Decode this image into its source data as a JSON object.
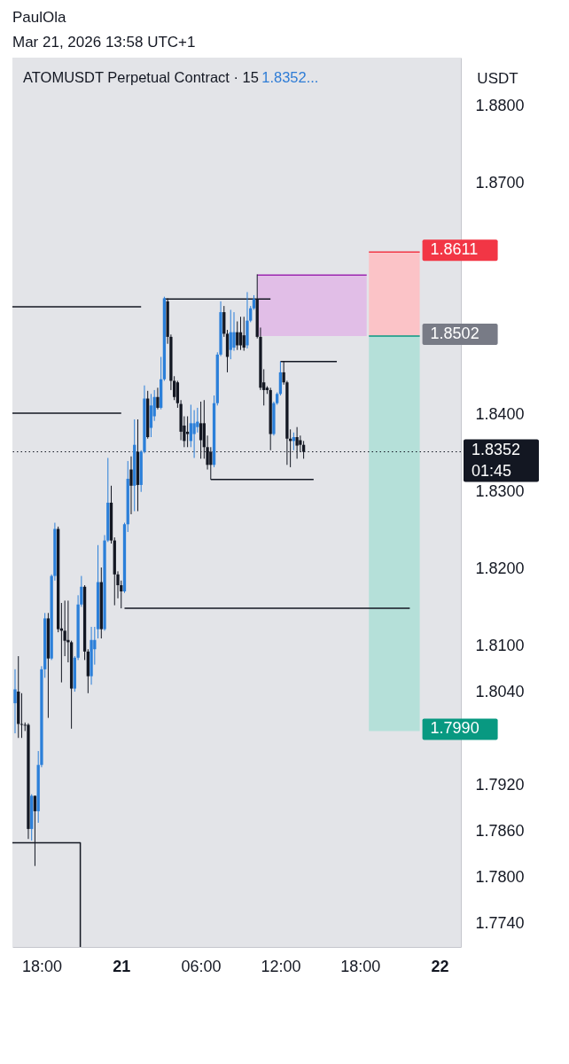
{
  "chart_data": {
    "type": "candlestick",
    "title": "ATOMUSDT Perpetual Contract · 15",
    "subtitle": "1.8352...",
    "ylabel": "USDT",
    "annotations": [
      "PaulOla",
      "Mar 21, 2026 13:58 UTC+1",
      {
        "text": "1.8611",
        "x": "2026-03-21T22:30",
        "y": 1.8611
      },
      {
        "text": "1.8502",
        "x": "2026-03-21T22:30",
        "y": 1.8502
      },
      {
        "text": "1.7990",
        "x": "2026-03-21T22:30",
        "y": 1.799
      }
    ],
    "x": [
      "2026-03-20T16:00",
      "2026-03-20T16:15",
      "2026-03-20T16:30",
      "2026-03-20T16:45",
      "2026-03-20T17:00",
      "2026-03-20T17:15",
      "2026-03-20T17:30",
      "2026-03-20T17:45",
      "2026-03-20T18:00",
      "2026-03-20T18:15",
      "2026-03-20T18:30",
      "2026-03-20T18:45",
      "2026-03-20T19:00",
      "2026-03-20T19:15",
      "2026-03-20T19:30",
      "2026-03-20T19:45",
      "2026-03-20T20:00",
      "2026-03-20T20:15",
      "2026-03-20T20:30",
      "2026-03-20T20:45",
      "2026-03-20T21:00",
      "2026-03-20T21:15",
      "2026-03-20T21:30",
      "2026-03-20T21:45",
      "2026-03-20T22:00",
      "2026-03-20T22:15",
      "2026-03-20T22:30",
      "2026-03-20T22:45",
      "2026-03-20T23:00",
      "2026-03-20T23:15",
      "2026-03-20T23:30",
      "2026-03-20T23:45",
      "2026-03-21T00:00",
      "2026-03-21T00:15",
      "2026-03-21T00:30",
      "2026-03-21T00:45",
      "2026-03-21T01:00",
      "2026-03-21T01:15",
      "2026-03-21T01:30",
      "2026-03-21T01:45",
      "2026-03-21T02:00",
      "2026-03-21T02:15",
      "2026-03-21T02:30",
      "2026-03-21T02:45",
      "2026-03-21T03:00",
      "2026-03-21T03:15",
      "2026-03-21T03:30",
      "2026-03-21T03:45",
      "2026-03-21T04:00",
      "2026-03-21T04:15",
      "2026-03-21T04:30",
      "2026-03-21T04:45",
      "2026-03-21T05:00",
      "2026-03-21T05:15",
      "2026-03-21T05:30",
      "2026-03-21T05:45",
      "2026-03-21T06:00",
      "2026-03-21T06:15",
      "2026-03-21T06:30",
      "2026-03-21T06:45",
      "2026-03-21T07:00",
      "2026-03-21T07:15",
      "2026-03-21T07:30",
      "2026-03-21T07:45",
      "2026-03-21T08:00",
      "2026-03-21T08:15",
      "2026-03-21T08:30",
      "2026-03-21T08:45",
      "2026-03-21T09:00",
      "2026-03-21T09:15",
      "2026-03-21T09:30",
      "2026-03-21T09:45",
      "2026-03-21T10:00",
      "2026-03-21T10:15",
      "2026-03-21T10:30",
      "2026-03-21T10:45",
      "2026-03-21T11:00",
      "2026-03-21T11:15",
      "2026-03-21T11:30",
      "2026-03-21T11:45",
      "2026-03-21T12:00",
      "2026-03-21T12:15",
      "2026-03-21T12:30",
      "2026-03-21T12:45",
      "2026-03-21T13:00",
      "2026-03-21T13:15",
      "2026-03-21T13:30",
      "2026-03-21T13:45"
    ],
    "ohlc": [
      [
        1.8026,
        1.807,
        1.7987,
        1.8044
      ],
      [
        1.8041,
        1.8087,
        1.7981,
        1.7999
      ],
      [
        1.7999,
        1.8039,
        1.7981,
        1.7998
      ],
      [
        1.7998,
        1.8001,
        1.799,
        1.7997
      ],
      [
        1.7998,
        1.8,
        1.785,
        1.7863
      ],
      [
        1.7863,
        1.7908,
        1.7848,
        1.7906
      ],
      [
        1.7906,
        1.7906,
        1.7815,
        1.7886
      ],
      [
        1.7886,
        1.7964,
        1.7871,
        1.7946
      ],
      [
        1.7946,
        1.8074,
        1.7943,
        1.807
      ],
      [
        1.807,
        1.8143,
        1.8059,
        1.8136
      ],
      [
        1.8136,
        1.8143,
        1.8007,
        1.8084
      ],
      [
        1.8084,
        1.8193,
        1.8082,
        1.8191
      ],
      [
        1.8191,
        1.826,
        1.8185,
        1.8252
      ],
      [
        1.8252,
        1.8255,
        1.8118,
        1.8122
      ],
      [
        1.8123,
        1.8156,
        1.8053,
        1.812
      ],
      [
        1.812,
        1.8159,
        1.8087,
        1.8107
      ],
      [
        1.8108,
        1.8159,
        1.8079,
        1.8105
      ],
      [
        1.8105,
        1.8107,
        1.7993,
        1.8045
      ],
      [
        1.8045,
        1.8087,
        1.8041,
        1.8085
      ],
      [
        1.8085,
        1.8166,
        1.8082,
        1.8154
      ],
      [
        1.8154,
        1.8191,
        1.8151,
        1.8177
      ],
      [
        1.8177,
        1.8179,
        1.8082,
        1.8093
      ],
      [
        1.8093,
        1.8096,
        1.8039,
        1.8061
      ],
      [
        1.8061,
        1.8125,
        1.805,
        1.8108
      ],
      [
        1.8096,
        1.8125,
        1.8076,
        1.8108
      ],
      [
        1.8122,
        1.8231,
        1.811,
        1.8183
      ],
      [
        1.8183,
        1.8202,
        1.811,
        1.8122
      ],
      [
        1.8122,
        1.8244,
        1.812,
        1.8237
      ],
      [
        1.8237,
        1.8344,
        1.8235,
        1.8286
      ],
      [
        1.8286,
        1.8308,
        1.8233,
        1.8237
      ],
      [
        1.8237,
        1.8241,
        1.8153,
        1.8193
      ],
      [
        1.8193,
        1.8197,
        1.8162,
        1.8179
      ],
      [
        1.8179,
        1.8185,
        1.8149,
        1.8171
      ],
      [
        1.8171,
        1.826,
        1.8169,
        1.8258
      ],
      [
        1.8258,
        1.834,
        1.8248,
        1.8317
      ],
      [
        1.8329,
        1.8346,
        1.8271,
        1.8308
      ],
      [
        1.8308,
        1.8394,
        1.8275,
        1.8361
      ],
      [
        1.8352,
        1.8394,
        1.8275,
        1.8309
      ],
      [
        1.8309,
        1.8354,
        1.83,
        1.8352
      ],
      [
        1.8352,
        1.8438,
        1.835,
        1.8421
      ],
      [
        1.8421,
        1.8431,
        1.8369,
        1.8371
      ],
      [
        1.8383,
        1.8427,
        1.8371,
        1.8412
      ],
      [
        1.8398,
        1.8432,
        1.8392,
        1.8423
      ],
      [
        1.8423,
        1.8435,
        1.8407,
        1.8409
      ],
      [
        1.8409,
        1.8475,
        1.8407,
        1.8446
      ],
      [
        1.8446,
        1.8553,
        1.8444,
        1.8551
      ],
      [
        1.8547,
        1.8551,
        1.8492,
        1.8501
      ],
      [
        1.8501,
        1.8504,
        1.8432,
        1.8444
      ],
      [
        1.8444,
        1.845,
        1.8419,
        1.8423
      ],
      [
        1.8442,
        1.8444,
        1.8409,
        1.8415
      ],
      [
        1.8414,
        1.8419,
        1.8367,
        1.8378
      ],
      [
        1.8386,
        1.8398,
        1.8358,
        1.8366
      ],
      [
        1.8378,
        1.8398,
        1.8358,
        1.8375
      ],
      [
        1.8366,
        1.8413,
        1.8358,
        1.8389
      ],
      [
        1.8375,
        1.8406,
        1.8344,
        1.8389
      ],
      [
        1.8384,
        1.8409,
        1.8377,
        1.8391
      ],
      [
        1.8389,
        1.8417,
        1.8343,
        1.8367
      ],
      [
        1.8389,
        1.8419,
        1.8343,
        1.8358
      ],
      [
        1.8358,
        1.8373,
        1.8329,
        1.8335
      ],
      [
        1.8352,
        1.8358,
        1.8316,
        1.8335
      ],
      [
        1.8335,
        1.8425,
        1.8332,
        1.8415
      ],
      [
        1.8415,
        1.8481,
        1.8412,
        1.8478
      ],
      [
        1.8478,
        1.8547,
        1.8476,
        1.8533
      ],
      [
        1.8533,
        1.8541,
        1.8501,
        1.8505
      ],
      [
        1.8505,
        1.851,
        1.8455,
        1.8475
      ],
      [
        1.8484,
        1.8536,
        1.8472,
        1.8507
      ],
      [
        1.8487,
        1.8533,
        1.8483,
        1.8507
      ],
      [
        1.8507,
        1.8521,
        1.8484,
        1.849
      ],
      [
        1.8507,
        1.8527,
        1.8484,
        1.849
      ],
      [
        1.8503,
        1.8527,
        1.8483,
        1.8487
      ],
      [
        1.849,
        1.8559,
        1.8486,
        1.8522
      ],
      [
        1.8522,
        1.8541,
        1.852,
        1.8538
      ],
      [
        1.8538,
        1.8555,
        1.8536,
        1.855
      ],
      [
        1.855,
        1.8582,
        1.8499,
        1.8501
      ],
      [
        1.8501,
        1.8513,
        1.8432,
        1.8435
      ],
      [
        1.8442,
        1.8459,
        1.8412,
        1.8432
      ],
      [
        1.8435,
        1.8437,
        1.8427,
        1.8432
      ],
      [
        1.8432,
        1.8435,
        1.8354,
        1.8375
      ],
      [
        1.8375,
        1.8417,
        1.8373,
        1.8415
      ],
      [
        1.8415,
        1.8429,
        1.8413,
        1.8427
      ],
      [
        1.8427,
        1.8469,
        1.8425,
        1.8455
      ],
      [
        1.8455,
        1.8469,
        1.8439,
        1.8442
      ],
      [
        1.8442,
        1.8444,
        1.8335,
        1.8369
      ],
      [
        1.8369,
        1.8381,
        1.8332,
        1.8366
      ],
      [
        1.8366,
        1.8377,
        1.8354,
        1.8371
      ],
      [
        1.8371,
        1.8384,
        1.8343,
        1.836
      ],
      [
        1.8367,
        1.8373,
        1.8352,
        1.8361
      ],
      [
        1.8361,
        1.8366,
        1.8343,
        1.8352
      ]
    ],
    "colors": [
      "#2b7fd9",
      "#131722",
      "#131722",
      "#131722",
      "#131722",
      "#2b7fd9",
      "#131722",
      "#2b7fd9",
      "#2b7fd9",
      "#2b7fd9",
      "#131722",
      "#2b7fd9",
      "#2b7fd9",
      "#131722",
      "#131722",
      "#131722",
      "#131722",
      "#131722",
      "#2b7fd9",
      "#2b7fd9",
      "#2b7fd9",
      "#131722",
      "#131722",
      "#2b7fd9",
      "#2b7fd9",
      "#2b7fd9",
      "#131722",
      "#2b7fd9",
      "#2b7fd9",
      "#131722",
      "#131722",
      "#131722",
      "#131722",
      "#2b7fd9",
      "#2b7fd9",
      "#131722",
      "#2b7fd9",
      "#131722",
      "#2b7fd9",
      "#2b7fd9",
      "#131722",
      "#2b7fd9",
      "#2b7fd9",
      "#131722",
      "#2b7fd9",
      "#2b7fd9",
      "#131722",
      "#131722",
      "#131722",
      "#131722",
      "#131722",
      "#131722",
      "#131722",
      "#2b7fd9",
      "#2b7fd9",
      "#2b7fd9",
      "#131722",
      "#131722",
      "#131722",
      "#131722",
      "#2b7fd9",
      "#2b7fd9",
      "#2b7fd9",
      "#131722",
      "#131722",
      "#2b7fd9",
      "#2b7fd9",
      "#131722",
      "#131722",
      "#131722",
      "#2b7fd9",
      "#2b7fd9",
      "#2b7fd9",
      "#131722",
      "#131722",
      "#131722",
      "#131722",
      "#131722",
      "#2b7fd9",
      "#2b7fd9",
      "#2b7fd9",
      "#131722",
      "#131722",
      "#131722",
      "#2b7fd9",
      "#131722",
      "#131722",
      "#131722"
    ],
    "series": [
      {
        "type": "line",
        "color": "#f23645",
        "x": [
          "2026-03-21T18:40",
          "2026-03-21T22:30"
        ],
        "values": [
          1.8611,
          1.8611
        ],
        "upper": [
          1.8611,
          1.8611
        ],
        "lower": [
          1.8502,
          1.8502
        ]
      },
      {
        "type": "line",
        "color": "#089981",
        "x": [
          "2026-03-21T18:40",
          "2026-03-21T22:30"
        ],
        "values": [
          1.8502,
          1.8502
        ],
        "upper": [
          1.8502,
          1.8502
        ],
        "lower": [
          1.799,
          1.799
        ]
      },
      {
        "type": "line",
        "color": "#9c27b0",
        "x": [
          "2026-03-21T10:15",
          "2026-03-21T18:30"
        ],
        "values": [
          1.8581,
          1.8581
        ],
        "upper": [
          1.8581,
          1.8581
        ],
        "lower": [
          1.8502,
          1.8502
        ]
      },
      {
        "type": "line",
        "color": "#131722",
        "x": [
          "2026-03-20T15:48",
          "2026-03-21T01:30"
        ],
        "values": [
          1.854,
          1.854
        ]
      },
      {
        "type": "line",
        "color": "#131722",
        "x": [
          "2026-03-20T15:48",
          "2026-03-21T00:00"
        ],
        "values": [
          1.8402,
          1.8402
        ]
      },
      {
        "type": "line",
        "color": "#131722",
        "x": [
          "2026-03-21T03:15",
          "2026-03-21T11:15"
        ],
        "values": [
          1.855,
          1.855
        ]
      },
      {
        "type": "line",
        "color": "#131722",
        "x": [
          "2026-03-21T06:45",
          "2026-03-21T14:30"
        ],
        "values": [
          1.8316,
          1.8316
        ]
      },
      {
        "type": "line",
        "color": "#131722",
        "x": [
          "2026-03-21T12:00",
          "2026-03-21T16:15"
        ],
        "values": [
          1.8469,
          1.8469
        ]
      },
      {
        "type": "line",
        "color": "#131722",
        "x": [
          "2026-03-21T00:15",
          "2026-03-21T21:45"
        ],
        "values": [
          1.8149,
          1.8149
        ]
      },
      {
        "type": "line",
        "color": "#131722",
        "x": [
          "2026-03-20T15:48",
          "2026-03-20T20:55",
          "2026-03-20T20:55"
        ],
        "values": [
          1.7845,
          1.7845,
          1.771
        ]
      }
    ],
    "ref_lines": [
      {
        "axis": "y",
        "value": 1.8352,
        "label": "1.8352\n01:45",
        "color": "#131722",
        "line_style": "dotted"
      }
    ],
    "xlim": [
      "2026-03-20T15:48",
      "2026-03-22T01:36"
    ],
    "ylim": [
      1.771,
      1.8863
    ],
    "xticks": [
      {
        "value": "2026-03-20T18:00",
        "label": "18:00"
      },
      {
        "value": "2026-03-21T00:00",
        "label": "21"
      },
      {
        "value": "2026-03-21T06:00",
        "label": "06:00"
      },
      {
        "value": "2026-03-21T12:00",
        "label": "12:00"
      },
      {
        "value": "2026-03-21T18:00",
        "label": "18:00"
      },
      {
        "value": "2026-03-22T00:00",
        "label": "22"
      }
    ],
    "yticks": [
      {
        "value": 1.88,
        "label": "1.8800"
      },
      {
        "value": 1.87,
        "label": "1.8700"
      },
      {
        "value": 1.84,
        "label": "1.8400"
      },
      {
        "value": 1.83,
        "label": "1.8300"
      },
      {
        "value": 1.82,
        "label": "1.8200"
      },
      {
        "value": 1.81,
        "label": "1.8100"
      },
      {
        "value": 1.804,
        "label": "1.8040"
      },
      {
        "value": 1.792,
        "label": "1.7920"
      },
      {
        "value": 1.786,
        "label": "1.7860"
      },
      {
        "value": 1.78,
        "label": "1.7800"
      },
      {
        "value": 1.774,
        "label": "1.7740"
      }
    ]
  }
}
